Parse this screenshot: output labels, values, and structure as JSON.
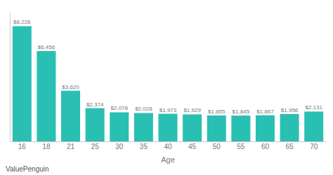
{
  "chart_data": {
    "type": "bar",
    "categories": [
      "16",
      "18",
      "21",
      "25",
      "30",
      "35",
      "40",
      "45",
      "50",
      "55",
      "60",
      "65",
      "70"
    ],
    "values": [
      8226,
      6456,
      3620,
      2374,
      2078,
      2028,
      1973,
      1929,
      1855,
      1845,
      1867,
      1956,
      2131
    ],
    "value_labels": [
      "$8,226",
      "$6,456",
      "$3,620",
      "$2,374",
      "$2,078",
      "$2,028",
      "$1,973",
      "$1,929",
      "$1,855",
      "$1,845",
      "$1,867",
      "$1,956",
      "$2,131"
    ],
    "color": "#2abfb3",
    "xlabel": "Age",
    "ylim": [
      0,
      9200
    ],
    "data_labels": true,
    "tick_labels": "x",
    "annotations": [
      "ValuePenguin"
    ]
  }
}
